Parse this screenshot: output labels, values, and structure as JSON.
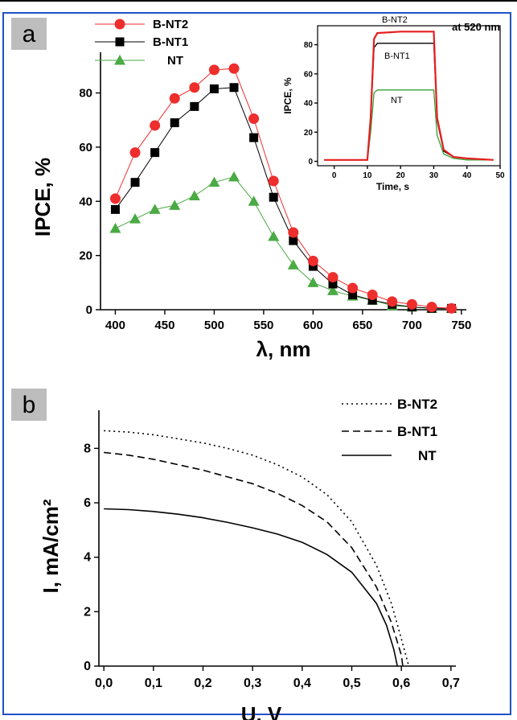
{
  "chart_data": [
    {
      "panel": "a",
      "type": "line",
      "xlabel": "λ, nm",
      "ylabel": "IPCE, %",
      "xlim": [
        385,
        755
      ],
      "ylim": [
        0,
        95
      ],
      "xticks": [
        400,
        450,
        500,
        550,
        600,
        650,
        700,
        750
      ],
      "yticks": [
        0,
        20,
        40,
        60,
        80
      ],
      "legend_position": "top-left",
      "series": [
        {
          "name": "B-NT2",
          "color": "#ee2d2d",
          "marker": "circle",
          "x": [
            400,
            420,
            440,
            460,
            480,
            500,
            520,
            540,
            560,
            580,
            600,
            620,
            640,
            660,
            680,
            700,
            720,
            740
          ],
          "y": [
            41,
            58,
            68,
            78,
            82,
            88.5,
            89,
            70.5,
            47.5,
            28.5,
            18,
            12,
            8,
            5.5,
            3,
            2,
            1,
            0.5
          ]
        },
        {
          "name": "B-NT1",
          "color": "#000000",
          "marker": "square",
          "x": [
            400,
            420,
            440,
            460,
            480,
            500,
            520,
            540,
            560,
            580,
            600,
            620,
            640,
            660,
            680,
            700,
            720,
            740
          ],
          "y": [
            37,
            47,
            58,
            69,
            75,
            81.5,
            82,
            63.5,
            41.5,
            25.5,
            16,
            9.5,
            5.5,
            3.5,
            2,
            1,
            0.5,
            0.5
          ]
        },
        {
          "name": "NT",
          "color": "#4aaa44",
          "marker": "triangle",
          "x": [
            400,
            420,
            440,
            460,
            480,
            500,
            520,
            540,
            560,
            580,
            600,
            620,
            640,
            660,
            680,
            700,
            720,
            740
          ],
          "y": [
            30,
            33.5,
            37,
            38.5,
            42,
            47,
            49,
            40,
            27,
            16.5,
            10,
            7,
            5,
            3.5,
            1.5,
            1,
            0.5,
            0.5
          ]
        }
      ]
    },
    {
      "panel": "a-inset",
      "type": "line",
      "annotation": "at 520 nm",
      "xlabel": "Time, s",
      "ylabel": "IPCE, %",
      "xlim": [
        -5,
        50
      ],
      "ylim": [
        -3,
        93
      ],
      "xticks": [
        0,
        10,
        20,
        30,
        40,
        50
      ],
      "yticks": [
        0,
        20,
        40,
        60,
        80
      ],
      "series": [
        {
          "name": "B-NT2",
          "color": "#e61e1e",
          "x": [
            -3,
            10,
            11,
            12,
            13,
            20,
            30,
            31,
            33,
            36,
            40,
            48
          ],
          "y": [
            1,
            1,
            30,
            84,
            88,
            89,
            89,
            30,
            8,
            3,
            2,
            1
          ]
        },
        {
          "name": "B-NT1",
          "color": "#000000",
          "x": [
            -3,
            10,
            11,
            12,
            13,
            20,
            30,
            31,
            33,
            36,
            40,
            48
          ],
          "y": [
            1,
            1,
            28,
            78,
            81,
            81,
            81,
            28,
            7,
            3,
            2,
            1
          ]
        },
        {
          "name": "NT",
          "color": "#35a035",
          "x": [
            -3,
            10,
            11,
            12,
            13,
            20,
            30,
            31,
            33,
            36,
            40,
            48
          ],
          "y": [
            1,
            1,
            20,
            47,
            49,
            49,
            49,
            18,
            5,
            2,
            1,
            1
          ]
        }
      ]
    },
    {
      "panel": "b",
      "type": "line",
      "xlabel": "U, V",
      "ylabel": "I, mA/cm²",
      "xlim": [
        -0.01,
        0.71
      ],
      "ylim": [
        0,
        9.4
      ],
      "xticks": [
        0.0,
        0.1,
        0.2,
        0.3,
        0.4,
        0.5,
        0.6,
        0.7
      ],
      "xticklabels": [
        "0,0",
        "0,1",
        "0,2",
        "0,3",
        "0,4",
        "0,5",
        "0,6",
        "0,7"
      ],
      "yticks": [
        0,
        2,
        4,
        6,
        8
      ],
      "legend_position": "top-right",
      "series": [
        {
          "name": "B-NT2",
          "style": "dotted",
          "x": [
            0,
            0.05,
            0.1,
            0.15,
            0.2,
            0.25,
            0.3,
            0.35,
            0.4,
            0.45,
            0.5,
            0.55,
            0.58,
            0.6,
            0.615
          ],
          "y": [
            8.65,
            8.6,
            8.5,
            8.35,
            8.2,
            8.0,
            7.75,
            7.4,
            6.95,
            6.3,
            5.3,
            3.7,
            2.3,
            1.0,
            0
          ]
        },
        {
          "name": "B-NT1",
          "style": "dashed",
          "x": [
            0,
            0.05,
            0.1,
            0.15,
            0.2,
            0.25,
            0.3,
            0.35,
            0.4,
            0.45,
            0.5,
            0.55,
            0.58,
            0.6,
            0.603
          ],
          "y": [
            7.85,
            7.75,
            7.6,
            7.4,
            7.2,
            6.95,
            6.7,
            6.35,
            5.9,
            5.3,
            4.35,
            2.9,
            1.6,
            0.4,
            0
          ]
        },
        {
          "name": "NT",
          "style": "solid",
          "x": [
            0,
            0.05,
            0.1,
            0.15,
            0.2,
            0.25,
            0.3,
            0.35,
            0.4,
            0.45,
            0.5,
            0.55,
            0.57,
            0.585,
            0.592
          ],
          "y": [
            5.78,
            5.75,
            5.68,
            5.58,
            5.45,
            5.28,
            5.08,
            4.85,
            4.55,
            4.1,
            3.45,
            2.3,
            1.5,
            0.6,
            0
          ]
        }
      ]
    }
  ]
}
